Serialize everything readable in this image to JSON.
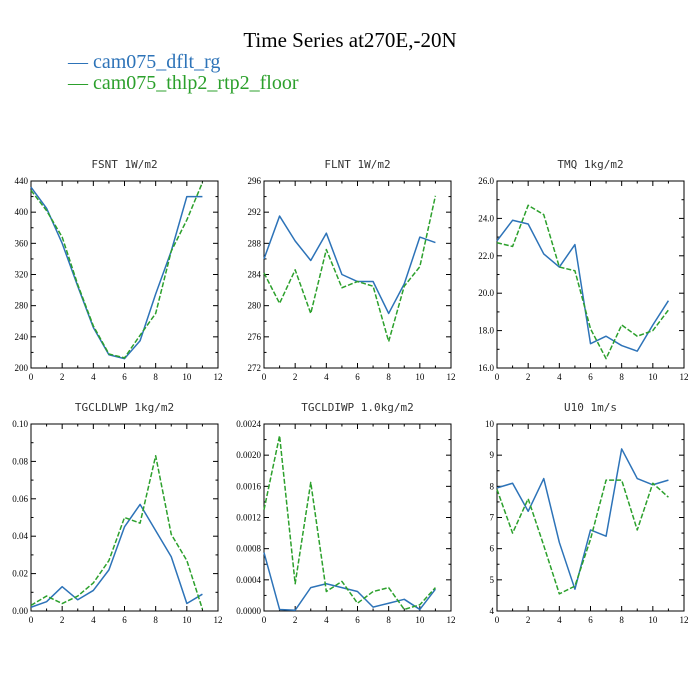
{
  "title": "Time Series at270E,-20N",
  "legend": [
    {
      "label": "cam075_dflt_rg",
      "color": "#2d73b8",
      "style": "solid",
      "marker": "—"
    },
    {
      "label": "cam075_thlp2_rtp2_floor",
      "color": "#2ca02c",
      "style": "dashed",
      "marker": "—"
    }
  ],
  "chart_data": [
    {
      "type": "line",
      "title": "FSNT   1W/m2",
      "x": [
        0,
        1,
        2,
        3,
        4,
        5,
        6,
        7,
        8,
        9,
        10,
        11
      ],
      "xlim": [
        0,
        12
      ],
      "xticks": [
        0,
        2,
        4,
        6,
        8,
        10,
        12
      ],
      "xtick_labels": [
        "0",
        "2",
        "4",
        "6",
        "8",
        "10",
        "12"
      ],
      "ylim": [
        200,
        440
      ],
      "yticks": [
        200,
        240,
        280,
        320,
        360,
        400,
        440
      ],
      "ytick_labels": [
        "200",
        "240",
        "280",
        "320",
        "360",
        "400",
        "440"
      ],
      "series": [
        {
          "name": "cam075_dflt_rg",
          "values": [
            432,
            405,
            360,
            305,
            252,
            217,
            212,
            235,
            295,
            350,
            420,
            420
          ]
        },
        {
          "name": "cam075_thlp2_rtp2_floor",
          "values": [
            428,
            402,
            368,
            307,
            254,
            218,
            213,
            242,
            270,
            350,
            390,
            438
          ]
        }
      ]
    },
    {
      "type": "line",
      "title": "FLNT   1W/m2",
      "x": [
        0,
        1,
        2,
        3,
        4,
        5,
        6,
        7,
        8,
        9,
        10,
        11
      ],
      "xlim": [
        0,
        12
      ],
      "xticks": [
        0,
        2,
        4,
        6,
        8,
        10,
        12
      ],
      "xtick_labels": [
        "0",
        "2",
        "4",
        "6",
        "8",
        "10",
        "12"
      ],
      "ylim": [
        272,
        296
      ],
      "yticks": [
        272,
        276,
        280,
        284,
        288,
        292,
        296
      ],
      "ytick_labels": [
        "272",
        "276",
        "280",
        "284",
        "288",
        "292",
        "296"
      ],
      "series": [
        {
          "name": "cam075_dflt_rg",
          "values": [
            286,
            291.5,
            288.3,
            285.8,
            289.3,
            284,
            283.1,
            283.1,
            279,
            282.8,
            288.8,
            288.1
          ]
        },
        {
          "name": "cam075_thlp2_rtp2_floor",
          "values": [
            284.2,
            280.3,
            284.6,
            279,
            287.2,
            282.3,
            283.1,
            282.5,
            275.4,
            282.5,
            285,
            294.1
          ]
        }
      ]
    },
    {
      "type": "line",
      "title": "TMQ   1kg/m2",
      "x": [
        0,
        1,
        2,
        3,
        4,
        5,
        6,
        7,
        8,
        9,
        10,
        11
      ],
      "xlim": [
        0,
        12
      ],
      "xticks": [
        0,
        2,
        4,
        6,
        8,
        10,
        12
      ],
      "xtick_labels": [
        "0",
        "2",
        "4",
        "6",
        "8",
        "10",
        "12"
      ],
      "ylim": [
        16,
        26
      ],
      "yticks": [
        16,
        18,
        20,
        22,
        24,
        26
      ],
      "ytick_labels": [
        "16.0",
        "18.0",
        "20.0",
        "22.0",
        "24.0",
        "26.0"
      ],
      "series": [
        {
          "name": "cam075_dflt_rg",
          "values": [
            22.8,
            23.9,
            23.7,
            22.1,
            21.4,
            22.6,
            17.3,
            17.7,
            17.2,
            16.9,
            18.3,
            19.6
          ]
        },
        {
          "name": "cam075_thlp2_rtp2_floor",
          "values": [
            22.7,
            22.5,
            24.7,
            24.2,
            21.4,
            21.2,
            18.1,
            16.5,
            18.3,
            17.7,
            18,
            19.1
          ]
        }
      ]
    },
    {
      "type": "line",
      "title": "TGCLDLWP   1kg/m2",
      "x": [
        0,
        1,
        2,
        3,
        4,
        5,
        6,
        7,
        8,
        9,
        10,
        11
      ],
      "xlim": [
        0,
        12
      ],
      "xticks": [
        0,
        2,
        4,
        6,
        8,
        10,
        12
      ],
      "xtick_labels": [
        "0",
        "2",
        "4",
        "6",
        "8",
        "10",
        "12"
      ],
      "ylim": [
        0,
        0.1
      ],
      "yticks": [
        0,
        0.02,
        0.04,
        0.06,
        0.08,
        0.1
      ],
      "ytick_labels": [
        "0.00",
        "0.02",
        "0.04",
        "0.06",
        "0.08",
        "0.10"
      ],
      "series": [
        {
          "name": "cam075_dflt_rg",
          "values": [
            0.002,
            0.005,
            0.013,
            0.006,
            0.011,
            0.022,
            0.045,
            0.057,
            0.043,
            0.029,
            0.004,
            0.009
          ]
        },
        {
          "name": "cam075_thlp2_rtp2_floor",
          "values": [
            0.003,
            0.008,
            0.004,
            0.008,
            0.015,
            0.027,
            0.05,
            0.047,
            0.083,
            0.041,
            0.027,
            0.001
          ]
        }
      ]
    },
    {
      "type": "line",
      "title": "TGCLDIWP   1.0kg/m2",
      "x": [
        0,
        1,
        2,
        3,
        4,
        5,
        6,
        7,
        8,
        9,
        10,
        11
      ],
      "xlim": [
        0,
        12
      ],
      "xticks": [
        0,
        2,
        4,
        6,
        8,
        10,
        12
      ],
      "xtick_labels": [
        "0",
        "2",
        "4",
        "6",
        "8",
        "10",
        "12"
      ],
      "ylim": [
        0,
        0.0024
      ],
      "yticks": [
        0,
        0.0004,
        0.0008,
        0.0012,
        0.0016,
        0.002,
        0.0024
      ],
      "ytick_labels": [
        "0.0000",
        "0.0004",
        "0.0008",
        "0.0012",
        "0.0016",
        "0.0020",
        "0.0024"
      ],
      "series": [
        {
          "name": "cam075_dflt_rg",
          "values": [
            0.00075,
            2e-05,
            1e-05,
            0.0003,
            0.00035,
            0.0003,
            0.00025,
            5e-05,
            0.0001,
            0.00015,
            2e-05,
            0.00028
          ]
        },
        {
          "name": "cam075_thlp2_rtp2_floor",
          "values": [
            0.0013,
            0.00225,
            0.00035,
            0.00165,
            0.00025,
            0.00038,
            0.0001,
            0.00025,
            0.0003,
            2e-05,
            8e-05,
            0.0003
          ]
        }
      ]
    },
    {
      "type": "line",
      "title": "U10   1m/s",
      "x": [
        0,
        1,
        2,
        3,
        4,
        5,
        6,
        7,
        8,
        9,
        10,
        11
      ],
      "xlim": [
        0,
        12
      ],
      "xticks": [
        0,
        2,
        4,
        6,
        8,
        10,
        12
      ],
      "xtick_labels": [
        "0",
        "2",
        "4",
        "6",
        "8",
        "10",
        "12"
      ],
      "ylim": [
        4,
        10
      ],
      "yticks": [
        4,
        5,
        6,
        7,
        8,
        9,
        10
      ],
      "ytick_labels": [
        "4",
        "5",
        "6",
        "7",
        "8",
        "9",
        "10"
      ],
      "series": [
        {
          "name": "cam075_dflt_rg",
          "values": [
            7.95,
            8.1,
            7.2,
            8.25,
            6.2,
            4.7,
            6.6,
            6.4,
            9.2,
            8.25,
            8.05,
            8.2
          ]
        },
        {
          "name": "cam075_thlp2_rtp2_floor",
          "values": [
            7.9,
            6.5,
            7.6,
            6.1,
            4.55,
            4.8,
            6.3,
            8.2,
            8.2,
            6.6,
            8.1,
            7.65
          ]
        }
      ]
    }
  ]
}
